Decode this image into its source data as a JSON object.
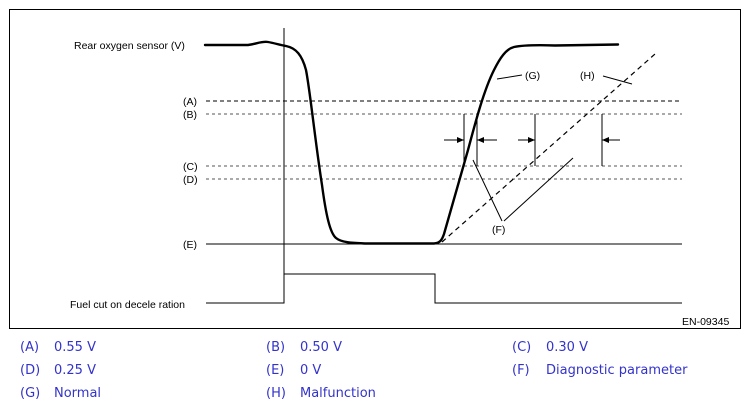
{
  "figure": {
    "y_label": "Rear oxygen sensor (V)",
    "x_label": "Fuel cut on decele  ration",
    "figure_id": "EN-09345",
    "levels": [
      {
        "key": "(A)",
        "style": "dashed"
      },
      {
        "key": "(B)",
        "style": "dotted"
      },
      {
        "key": "(C)",
        "style": "dotted"
      },
      {
        "key": "(D)",
        "style": "dotted"
      },
      {
        "key": "(E)",
        "style": "solid"
      }
    ],
    "callouts": {
      "g": "(G)",
      "h": "(H)",
      "f": "(F)"
    }
  },
  "legend": [
    {
      "key": "(A)",
      "text": "0.55 V"
    },
    {
      "key": "(B)",
      "text": "0.50 V"
    },
    {
      "key": "(C)",
      "text": "0.30 V"
    },
    {
      "key": "(D)",
      "text": "0.25 V"
    },
    {
      "key": "(E)",
      "text": "0 V"
    },
    {
      "key": "(F)",
      "text": "Diagnostic parameter"
    },
    {
      "key": "(G)",
      "text": "Normal"
    },
    {
      "key": "(H)",
      "text": "Malfunction"
    }
  ],
  "colors": {
    "line": "#000000",
    "legend_text": "#3333cc"
  }
}
